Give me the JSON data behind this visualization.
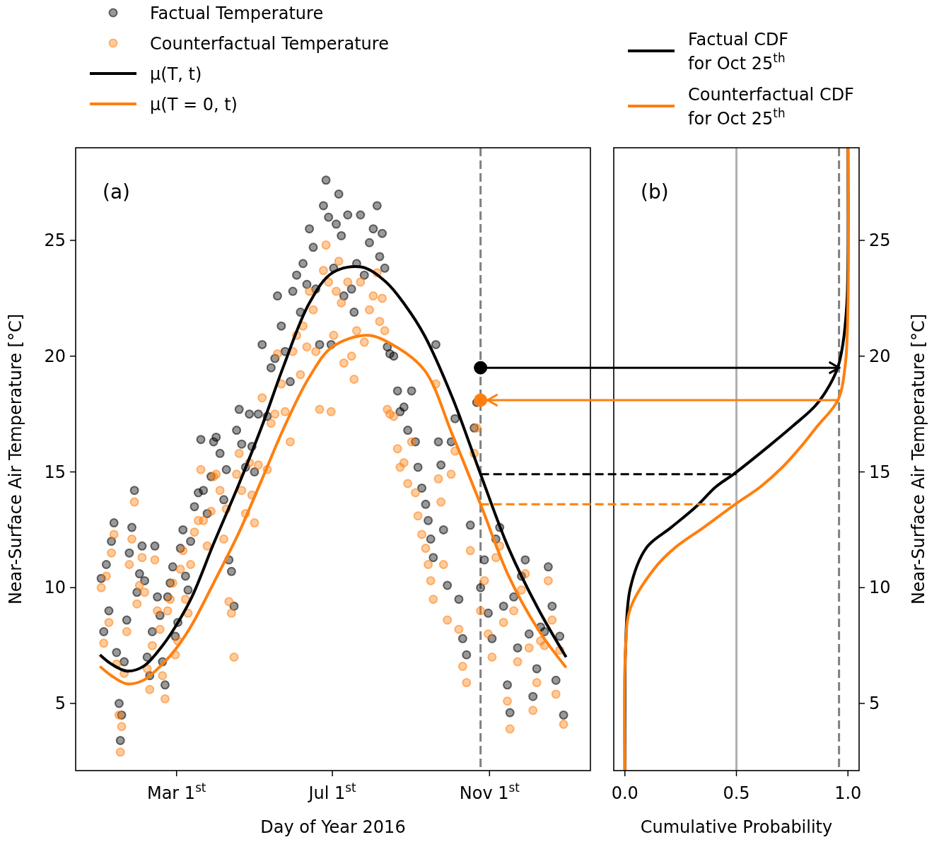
{
  "chart_data": [
    {
      "type": "scatter",
      "xlabel": "Day of Year 2016",
      "ylabel": "Near-Surface Air Temperature [°C]",
      "annotations": [
        "(a)"
      ],
      "xlim": [
        "2015-12-13",
        "2017-01-19"
      ],
      "xticks": [
        {
          "value": "2016-03-01",
          "label": "Mar 1$^{st}$"
        },
        {
          "value": "2016-07-01",
          "label": "Jul 1$^{st}$"
        },
        {
          "value": "2016-11-01",
          "label": "Nov 1$^{st}$"
        }
      ],
      "ylim": [
        2.1,
        29
      ],
      "yticks": [
        5,
        10,
        15,
        20,
        25
      ],
      "legend": "top",
      "ref_lines": [
        {
          "axis": "x",
          "value": "2016-10-25",
          "color": "#808080",
          "line_style": "dashed"
        }
      ],
      "series": [
        {
          "name": "Factual Temperature",
          "color": "#000000",
          "marker": "circle",
          "x": [
            "2016-01-02",
            "2016-01-04",
            "2016-01-06",
            "2016-01-08",
            "2016-01-10",
            "2016-01-12",
            "2016-01-14",
            "2016-01-16",
            "2016-01-17",
            "2016-01-18",
            "2016-01-20",
            "2016-01-22",
            "2016-01-24",
            "2016-01-26",
            "2016-01-28",
            "2016-01-30",
            "2016-02-01",
            "2016-02-03",
            "2016-02-05",
            "2016-02-07",
            "2016-02-09",
            "2016-02-11",
            "2016-02-13",
            "2016-02-15",
            "2016-02-17",
            "2016-02-19",
            "2016-02-21",
            "2016-02-23",
            "2016-02-25",
            "2016-02-27",
            "2016-02-29",
            "2016-03-02",
            "2016-03-04",
            "2016-03-06",
            "2016-03-08",
            "2016-03-10",
            "2016-03-12",
            "2016-03-15",
            "2016-03-18",
            "2016-03-20",
            "2016-03-22",
            "2016-03-25",
            "2016-03-28",
            "2016-03-30",
            "2016-04-01",
            "2016-04-04",
            "2016-04-07",
            "2016-04-09",
            "2016-04-11",
            "2016-04-13",
            "2016-04-15",
            "2016-04-17",
            "2016-04-19",
            "2016-04-21",
            "2016-04-24",
            "2016-04-27",
            "2016-04-29",
            "2016-05-01",
            "2016-05-04",
            "2016-05-07",
            "2016-05-11",
            "2016-05-14",
            "2016-05-17",
            "2016-05-19",
            "2016-05-22",
            "2016-05-25",
            "2016-05-29",
            "2016-05-31",
            "2016-06-03",
            "2016-06-06",
            "2016-06-08",
            "2016-06-11",
            "2016-06-13",
            "2016-06-16",
            "2016-06-18",
            "2016-06-21",
            "2016-06-24",
            "2016-06-26",
            "2016-06-28",
            "2016-06-30",
            "2016-07-02",
            "2016-07-04",
            "2016-07-06",
            "2016-07-08",
            "2016-07-10",
            "2016-07-13",
            "2016-07-16",
            "2016-07-18",
            "2016-07-20",
            "2016-07-23",
            "2016-07-26",
            "2016-07-30",
            "2016-08-02",
            "2016-08-05",
            "2016-08-07",
            "2016-08-09",
            "2016-08-11",
            "2016-08-13",
            "2016-08-15",
            "2016-08-18",
            "2016-08-21",
            "2016-08-23",
            "2016-08-26",
            "2016-08-29",
            "2016-09-01",
            "2016-09-04",
            "2016-09-06",
            "2016-09-09",
            "2016-09-12",
            "2016-09-14",
            "2016-09-16",
            "2016-09-18",
            "2016-09-20",
            "2016-09-22",
            "2016-09-24",
            "2016-09-26",
            "2016-09-29",
            "2016-10-02",
            "2016-10-05",
            "2016-10-08",
            "2016-10-11",
            "2016-10-14",
            "2016-10-17",
            "2016-10-20",
            "2016-10-22",
            "2016-10-25",
            "2016-10-28",
            "2016-10-31",
            "2016-11-03",
            "2016-11-06",
            "2016-11-09",
            "2016-11-12",
            "2016-11-15",
            "2016-11-17",
            "2016-11-20",
            "2016-11-23",
            "2016-11-26",
            "2016-11-29",
            "2016-12-02",
            "2016-12-05",
            "2016-12-08",
            "2016-12-11",
            "2016-12-14",
            "2016-12-17",
            "2016-12-20",
            "2016-12-23",
            "2016-12-26",
            "2016-12-29"
          ],
          "values": [
            10.4,
            8.1,
            11.0,
            9.0,
            12.0,
            12.8,
            7.2,
            5.0,
            3.4,
            4.5,
            6.8,
            8.6,
            11.5,
            12.6,
            14.2,
            9.8,
            10.6,
            11.8,
            10.3,
            7.0,
            6.2,
            8.1,
            11.8,
            9.6,
            8.8,
            6.8,
            5.8,
            9.6,
            10.2,
            10.9,
            7.9,
            8.5,
            11.7,
            12.5,
            10.5,
            9.9,
            12.0,
            13.5,
            14.1,
            16.4,
            14.2,
            13.2,
            14.8,
            16.3,
            16.5,
            15.8,
            13.8,
            15.1,
            11.2,
            10.7,
            9.2,
            16.8,
            17.7,
            16.2,
            15.2,
            17.5,
            16.1,
            15.0,
            17.5,
            20.5,
            17.4,
            19.5,
            19.9,
            22.6,
            21.3,
            20.2,
            18.9,
            22.8,
            23.5,
            21.9,
            24.0,
            23.1,
            25.5,
            24.7,
            22.9,
            20.5,
            26.5,
            27.6,
            26.0,
            20.5,
            23.8,
            25.7,
            27.0,
            25.2,
            22.6,
            26.1,
            22.9,
            21.9,
            24.0,
            26.1,
            23.5,
            24.9,
            25.5,
            26.5,
            24.3,
            25.3,
            23.8,
            20.4,
            20.1,
            20.0,
            18.5,
            17.6,
            17.8,
            16.8,
            18.5,
            16.3,
            15.2,
            14.3,
            13.6,
            12.9,
            12.1,
            11.3,
            20.5,
            16.3,
            15.3,
            12.5,
            10.1,
            16.3,
            17.3,
            9.5,
            7.8,
            7.1,
            12.7,
            16.9,
            18.0,
            10.0,
            11.2,
            8.9,
            7.8,
            12.1,
            12.6,
            9.2,
            5.8,
            4.6,
            9.6,
            7.4,
            10.5,
            11.2,
            8.0,
            5.3,
            6.5,
            8.3,
            8.1,
            10.9,
            9.2,
            6.0,
            7.9,
            4.5
          ]
        },
        {
          "name": "Counterfactual Temperature",
          "color": "#ff7f0e",
          "marker": "circle",
          "x": [
            "2016-01-02",
            "2016-01-04",
            "2016-01-06",
            "2016-01-08",
            "2016-01-10",
            "2016-01-12",
            "2016-01-14",
            "2016-01-16",
            "2016-01-17",
            "2016-01-18",
            "2016-01-20",
            "2016-01-22",
            "2016-01-24",
            "2016-01-26",
            "2016-01-28",
            "2016-01-30",
            "2016-02-01",
            "2016-02-03",
            "2016-02-05",
            "2016-02-07",
            "2016-02-09",
            "2016-02-11",
            "2016-02-13",
            "2016-02-15",
            "2016-02-17",
            "2016-02-19",
            "2016-02-21",
            "2016-02-23",
            "2016-02-25",
            "2016-02-27",
            "2016-02-29",
            "2016-03-02",
            "2016-03-04",
            "2016-03-06",
            "2016-03-08",
            "2016-03-10",
            "2016-03-12",
            "2016-03-15",
            "2016-03-18",
            "2016-03-20",
            "2016-03-22",
            "2016-03-25",
            "2016-03-28",
            "2016-03-30",
            "2016-04-01",
            "2016-04-04",
            "2016-04-07",
            "2016-04-09",
            "2016-04-11",
            "2016-04-13",
            "2016-04-15",
            "2016-04-17",
            "2016-04-19",
            "2016-04-21",
            "2016-04-24",
            "2016-04-27",
            "2016-04-29",
            "2016-05-01",
            "2016-05-04",
            "2016-05-07",
            "2016-05-11",
            "2016-05-14",
            "2016-05-17",
            "2016-05-19",
            "2016-05-22",
            "2016-05-25",
            "2016-05-29",
            "2016-05-31",
            "2016-06-03",
            "2016-06-06",
            "2016-06-08",
            "2016-06-11",
            "2016-06-13",
            "2016-06-16",
            "2016-06-18",
            "2016-06-21",
            "2016-06-24",
            "2016-06-26",
            "2016-06-28",
            "2016-06-30",
            "2016-07-02",
            "2016-07-04",
            "2016-07-06",
            "2016-07-08",
            "2016-07-10",
            "2016-07-13",
            "2016-07-16",
            "2016-07-18",
            "2016-07-20",
            "2016-07-23",
            "2016-07-26",
            "2016-07-30",
            "2016-08-02",
            "2016-08-05",
            "2016-08-07",
            "2016-08-09",
            "2016-08-11",
            "2016-08-13",
            "2016-08-15",
            "2016-08-18",
            "2016-08-21",
            "2016-08-23",
            "2016-08-26",
            "2016-08-29",
            "2016-09-01",
            "2016-09-04",
            "2016-09-06",
            "2016-09-09",
            "2016-09-12",
            "2016-09-14",
            "2016-09-16",
            "2016-09-18",
            "2016-09-20",
            "2016-09-22",
            "2016-09-24",
            "2016-09-26",
            "2016-09-29",
            "2016-10-02",
            "2016-10-05",
            "2016-10-08",
            "2016-10-11",
            "2016-10-14",
            "2016-10-17",
            "2016-10-20",
            "2016-10-22",
            "2016-10-25",
            "2016-10-28",
            "2016-10-31",
            "2016-11-03",
            "2016-11-06",
            "2016-11-09",
            "2016-11-12",
            "2016-11-15",
            "2016-11-17",
            "2016-11-20",
            "2016-11-23",
            "2016-11-26",
            "2016-11-29",
            "2016-12-02",
            "2016-12-05",
            "2016-12-08",
            "2016-12-11",
            "2016-12-14",
            "2016-12-17",
            "2016-12-20",
            "2016-12-23",
            "2016-12-26",
            "2016-12-29"
          ],
          "values": [
            10.0,
            7.6,
            10.5,
            8.5,
            11.5,
            12.3,
            6.7,
            4.5,
            2.9,
            4.0,
            6.3,
            8.1,
            11.0,
            12.1,
            13.7,
            9.3,
            10.1,
            11.3,
            9.8,
            6.5,
            5.6,
            7.5,
            11.2,
            9.0,
            8.2,
            6.2,
            5.2,
            9.0,
            9.5,
            10.2,
            7.1,
            7.7,
            10.8,
            11.6,
            9.5,
            8.9,
            11.0,
            12.4,
            12.9,
            15.1,
            12.9,
            11.8,
            13.3,
            14.8,
            14.9,
            14.2,
            12.1,
            13.4,
            9.4,
            8.9,
            7.0,
            14.9,
            15.8,
            14.2,
            13.2,
            15.4,
            14.0,
            12.8,
            15.3,
            18.2,
            15.1,
            17.1,
            17.5,
            20.1,
            18.8,
            17.6,
            16.3,
            20.2,
            20.9,
            19.2,
            21.3,
            20.4,
            22.8,
            22.0,
            20.2,
            17.7,
            23.7,
            24.8,
            23.2,
            17.6,
            20.9,
            22.8,
            24.1,
            22.3,
            19.7,
            23.2,
            20.0,
            19.0,
            21.1,
            23.2,
            20.6,
            22.0,
            22.6,
            23.6,
            21.5,
            22.5,
            21.1,
            17.7,
            17.5,
            17.4,
            16.0,
            15.2,
            15.4,
            14.5,
            16.3,
            14.1,
            13.1,
            12.3,
            11.7,
            11.0,
            10.3,
            9.5,
            18.8,
            14.7,
            13.7,
            11.0,
            8.6,
            14.9,
            15.9,
            8.2,
            6.6,
            5.9,
            11.6,
            15.8,
            16.9,
            9.0,
            10.3,
            8.0,
            7.0,
            11.3,
            11.8,
            8.5,
            5.1,
            3.9,
            9.0,
            6.8,
            9.9,
            10.6,
            7.4,
            4.7,
            5.9,
            7.7,
            7.5,
            10.3,
            8.6,
            5.4,
            7.3,
            4.1
          ]
        },
        {
          "name": "μ(T, t)",
          "type": "line",
          "color": "#000000",
          "x": [
            "2016-01-01",
            "2016-01-10",
            "2016-01-22",
            "2016-02-04",
            "2016-02-19",
            "2016-03-01",
            "2016-03-13",
            "2016-03-30",
            "2016-04-19",
            "2016-05-07",
            "2016-05-24",
            "2016-06-13",
            "2016-07-01",
            "2016-07-24",
            "2016-08-12",
            "2016-08-27",
            "2016-09-11",
            "2016-10-03",
            "2016-10-25",
            "2016-11-16",
            "2016-12-09",
            "2016-12-31"
          ],
          "values": [
            7.1,
            6.7,
            6.4,
            6.6,
            7.5,
            8.4,
            9.6,
            11.9,
            14.5,
            17.0,
            19.6,
            22.3,
            23.6,
            23.85,
            23.2,
            22.2,
            20.9,
            18.2,
            14.9,
            11.7,
            9.1,
            7.0
          ]
        },
        {
          "name": "μ(T = 0, t)",
          "type": "line",
          "color": "#ff7f0e",
          "x": [
            "2016-01-01",
            "2016-01-10",
            "2016-01-22",
            "2016-02-04",
            "2016-02-19",
            "2016-03-01",
            "2016-03-13",
            "2016-03-30",
            "2016-04-19",
            "2016-05-07",
            "2016-05-24",
            "2016-06-13",
            "2016-07-01",
            "2016-07-28",
            "2016-08-17",
            "2016-09-11",
            "2016-10-03",
            "2016-10-25",
            "2016-11-16",
            "2016-12-09",
            "2016-12-31"
          ],
          "values": [
            6.6,
            6.2,
            5.85,
            6.0,
            6.7,
            7.4,
            8.4,
            10.2,
            12.4,
            14.7,
            16.9,
            19.1,
            20.4,
            20.9,
            20.5,
            19.4,
            16.6,
            13.6,
            10.5,
            8.2,
            6.55
          ]
        },
        {
          "color": "#000000",
          "marker": "circle",
          "x": [
            "2016-10-25"
          ],
          "values": [
            19.5
          ]
        },
        {
          "color": "#ff7f0e",
          "marker": "circle",
          "x": [
            "2016-10-25"
          ],
          "values": [
            18.1
          ]
        }
      ]
    },
    {
      "type": "line",
      "xlabel": "Cumulative Probability",
      "y2label": "Near-Surface Air Temperature [°C]",
      "annotations": [
        "(b)"
      ],
      "xlim": [
        -0.05,
        1.05
      ],
      "xticks": [
        {
          "value": 0,
          "label": "0.0"
        },
        0.5,
        {
          "value": 1,
          "label": "1.0"
        }
      ],
      "y2lim": [
        2.1,
        29
      ],
      "y2ticks": [
        5,
        10,
        15,
        20,
        25
      ],
      "legend": "top",
      "ref_lines": [
        {
          "axis": "x",
          "value": 0.5,
          "color": "#b0b0b0"
        },
        {
          "axis": "x",
          "value": 0.96,
          "color": "#808080",
          "line_style": "dashed"
        },
        {
          "axis": "y2",
          "value": 19.5,
          "color": "#000000"
        },
        {
          "axis": "y2",
          "value": 18.1,
          "color": "#ff7f0e"
        },
        {
          "axis": "y2",
          "value": 14.9,
          "color": "#000000",
          "line_style": "dashed"
        },
        {
          "axis": "y2",
          "value": 13.6,
          "color": "#ff7f0e",
          "line_style": "dashed"
        }
      ],
      "series": [
        {
          "name": "Factual CDF for Oct 25$^{th}$",
          "color": "#000000",
          "axis": "y2",
          "x": [
            0.0,
            0.0,
            0.003,
            0.024,
            0.097,
            0.207,
            0.317,
            0.408,
            0.49,
            0.645,
            0.754,
            0.855,
            0.918,
            0.955,
            0.977,
            0.995,
            1.0,
            1.0
          ],
          "values": [
            2.1,
            5.0,
            7.34,
            9.97,
            11.73,
            12.6,
            13.48,
            14.36,
            14.92,
            16.11,
            16.99,
            17.87,
            18.75,
            19.53,
            20.5,
            22.25,
            24.01,
            29
          ]
        },
        {
          "name": "Counterfactual CDF for Oct 25$^{th}$",
          "color": "#ff7f0e",
          "axis": "y2",
          "x": [
            0.0,
            0.003,
            0.024,
            0.134,
            0.225,
            0.353,
            0.49,
            0.608,
            0.709,
            0.791,
            0.864,
            0.955,
            0.988,
            1.0,
            1.0
          ],
          "values": [
            2.1,
            7.34,
            9.09,
            10.85,
            11.73,
            12.6,
            13.57,
            14.36,
            15.23,
            16.11,
            16.99,
            18.1,
            19.62,
            22.25,
            29
          ]
        }
      ]
    }
  ]
}
